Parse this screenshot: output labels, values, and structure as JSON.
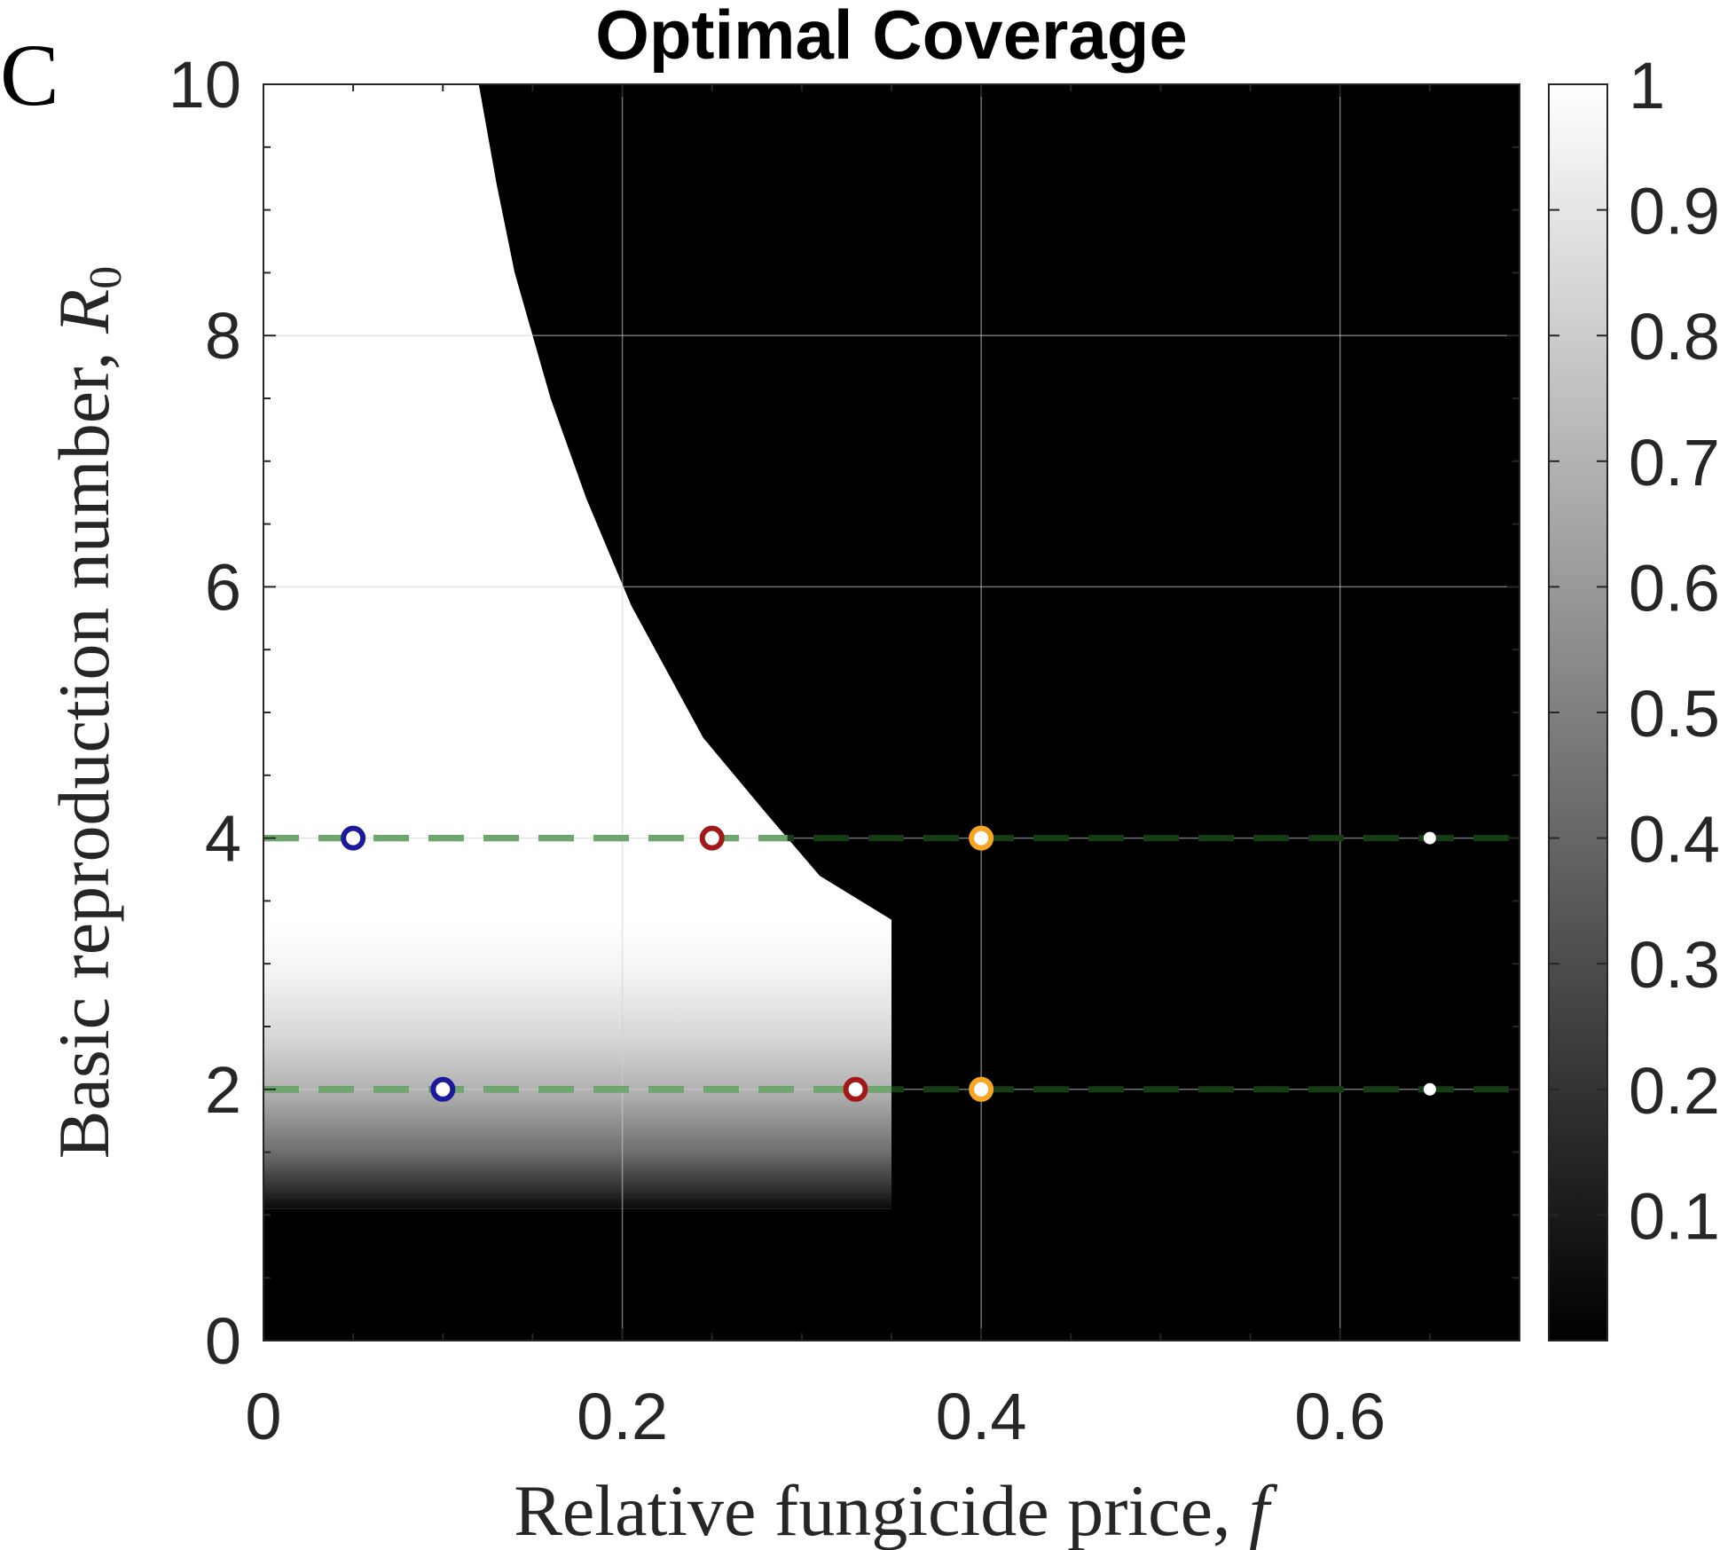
{
  "panel_label": "C",
  "chart_data": {
    "type": "heatmap",
    "title": "Optimal Coverage",
    "xlabel": {
      "text": "Relative fungicide price, ",
      "symbol": "f"
    },
    "ylabel": {
      "text": "Basic reproduction number, ",
      "symbol": "R",
      "subscript": "0"
    },
    "xlim": [
      0,
      0.7
    ],
    "ylim": [
      0,
      10
    ],
    "x_ticks": [
      {
        "value": 0,
        "label": "0"
      },
      {
        "value": 0.2,
        "label": "0.2"
      },
      {
        "value": 0.4,
        "label": "0.4"
      },
      {
        "value": 0.6,
        "label": "0.6"
      }
    ],
    "y_ticks": [
      {
        "value": 0,
        "label": "0"
      },
      {
        "value": 2,
        "label": "2"
      },
      {
        "value": 4,
        "label": "4"
      },
      {
        "value": 6,
        "label": "6"
      },
      {
        "value": 8,
        "label": "8"
      },
      {
        "value": 10,
        "label": "10"
      }
    ],
    "grid": true,
    "colorbar": {
      "range": [
        0,
        1
      ],
      "ticks": [
        {
          "value": 0.1,
          "label": "0.1"
        },
        {
          "value": 0.2,
          "label": "0.2"
        },
        {
          "value": 0.3,
          "label": "0.3"
        },
        {
          "value": 0.4,
          "label": "0.4"
        },
        {
          "value": 0.5,
          "label": "0.5"
        },
        {
          "value": 0.6,
          "label": "0.6"
        },
        {
          "value": 0.7,
          "label": "0.7"
        },
        {
          "value": 0.8,
          "label": "0.8"
        },
        {
          "value": 0.9,
          "label": "0.9"
        },
        {
          "value": 1,
          "label": "1"
        }
      ],
      "colormap": "gray"
    },
    "regions": {
      "zero_coverage_below_R0": 1.05,
      "partial_coverage_f_max": 0.35,
      "full_coverage_R0_min": 3.35,
      "boundary_upper": [
        {
          "f": 0.35,
          "R0": 3.35
        },
        {
          "f": 0.31,
          "R0": 3.7
        },
        {
          "f": 0.28,
          "R0": 4.2
        },
        {
          "f": 0.245,
          "R0": 4.8
        },
        {
          "f": 0.205,
          "R0": 5.85
        },
        {
          "f": 0.18,
          "R0": 6.7
        },
        {
          "f": 0.16,
          "R0": 7.5
        },
        {
          "f": 0.14,
          "R0": 8.5
        },
        {
          "f": 0.13,
          "R0": 9.2
        },
        {
          "f": 0.12,
          "R0": 10
        }
      ]
    },
    "reference_lines": [
      {
        "R0": 4,
        "style": "dashed",
        "color": "#6fa86f"
      },
      {
        "R0": 2,
        "style": "dashed",
        "color": "#6fa86f"
      }
    ],
    "markers": [
      {
        "f": 0.05,
        "R0": 4,
        "color": "#1a1a9a"
      },
      {
        "f": 0.25,
        "R0": 4,
        "color": "#a01818"
      },
      {
        "f": 0.4,
        "R0": 4,
        "color": "#f5a623"
      },
      {
        "f": 0.65,
        "R0": 4,
        "color": "#ffffff"
      },
      {
        "f": 0.1,
        "R0": 2,
        "color": "#1a1a9a"
      },
      {
        "f": 0.33,
        "R0": 2,
        "color": "#a01818"
      },
      {
        "f": 0.4,
        "R0": 2,
        "color": "#f5a623"
      },
      {
        "f": 0.65,
        "R0": 2,
        "color": "#ffffff"
      }
    ]
  }
}
